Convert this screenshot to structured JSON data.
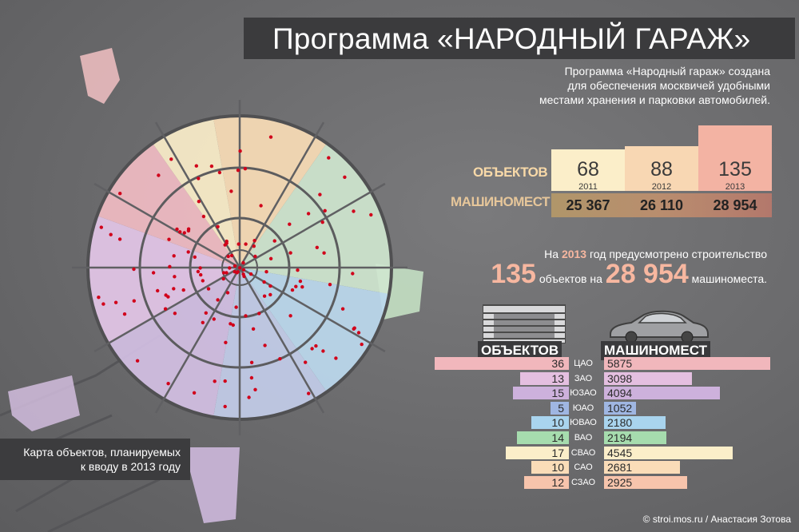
{
  "title": "Программа «НАРОДНЫЙ ГАРАЖ»",
  "intro": [
    "Программа «Народный гараж» создана",
    "для обеспечения москвичей удобными",
    "местами хранения и парковки автомобилей."
  ],
  "row_labels": {
    "objects": "ОБЪЕКТОВ",
    "parking": "МАШИНОМЕСТ"
  },
  "years": [
    {
      "year": "2011",
      "objects": "68",
      "parking": "25 367",
      "color": "#fbeec9"
    },
    {
      "year": "2012",
      "objects": "88",
      "parking": "26 110",
      "color": "#f8d7b3"
    },
    {
      "year": "2013",
      "objects": "135",
      "parking": "28 954",
      "color": "#f3b3a3"
    }
  ],
  "plan": {
    "pre": "На ",
    "year": "2013",
    "post": " год предусмотрено строительство",
    "objects": "135",
    "mid": "объектов на",
    "parking": "28 954",
    "end": "машиноместа."
  },
  "table_headers": {
    "objects": "ОБЪЕКТОВ",
    "parking": "МАШИНОМЕСТ"
  },
  "chart_data": {
    "type": "bar",
    "categories": [
      "ЦАО",
      "ЗАО",
      "ЮЗАО",
      "ЮАО",
      "ЮВАО",
      "ВАО",
      "СВАО",
      "САО",
      "СЗАО"
    ],
    "series": [
      {
        "name": "ОБЪЕКТОВ",
        "values": [
          36,
          13,
          15,
          5,
          10,
          14,
          17,
          10,
          12
        ]
      },
      {
        "name": "МАШИНОМЕСТ",
        "values": [
          5875,
          3098,
          4094,
          1052,
          2180,
          2194,
          4545,
          2681,
          2925
        ]
      }
    ],
    "colors": [
      "#f1b7bc",
      "#e4bfe0",
      "#cdb1dc",
      "#9fb6e2",
      "#a9d4ee",
      "#a6dcae",
      "#fbeec9",
      "#fadcb8",
      "#f7c4ac"
    ]
  },
  "map_caption": "Карта объектов, планируемых\nк вводу в 2013 году",
  "credit": "© stroi.mos.ru / Анастасия Зотова"
}
